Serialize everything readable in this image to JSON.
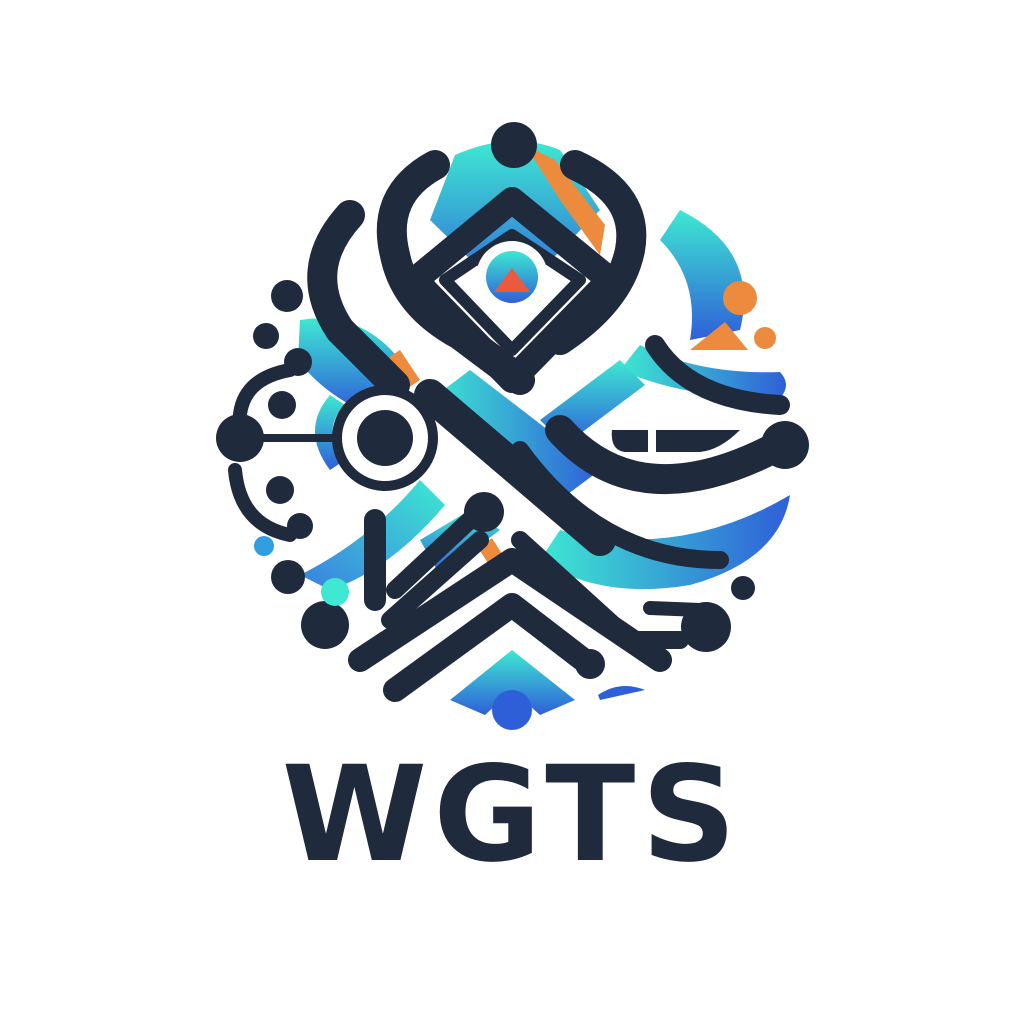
{
  "brand": {
    "name": "WGTS",
    "colors": {
      "navy": "#1f2a3d",
      "teal": "#3ee8d2",
      "blue": "#2f5fd8",
      "orange": "#ec8a3e",
      "white": "#ffffff"
    }
  },
  "emblem": {
    "icon": "circuit-network-emblem-icon"
  }
}
